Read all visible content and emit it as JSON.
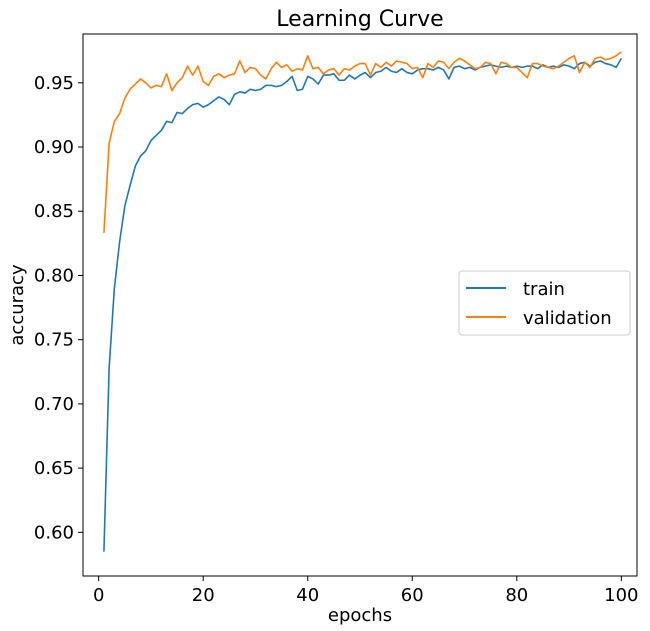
{
  "chart_data": {
    "type": "line",
    "title": "Learning Curve",
    "xlabel": "epochs",
    "ylabel": "accuracy",
    "xlim": [
      -3,
      103
    ],
    "ylim": [
      0.566,
      0.988
    ],
    "xticks": [
      0,
      20,
      40,
      60,
      80,
      100
    ],
    "xtick_labels": [
      "0",
      "20",
      "40",
      "60",
      "80",
      "100"
    ],
    "yticks": [
      0.6,
      0.65,
      0.7,
      0.75,
      0.8,
      0.85,
      0.9,
      0.95
    ],
    "ytick_labels": [
      "0.60",
      "0.65",
      "0.70",
      "0.75",
      "0.80",
      "0.85",
      "0.90",
      "0.95"
    ],
    "legend_position": "center-right",
    "series": [
      {
        "name": "train",
        "color": "#1f77b4",
        "x": [
          1,
          2,
          3,
          4,
          5,
          6,
          7,
          8,
          9,
          10,
          11,
          12,
          13,
          14,
          15,
          16,
          17,
          18,
          19,
          20,
          21,
          22,
          23,
          24,
          25,
          26,
          27,
          28,
          29,
          30,
          31,
          32,
          33,
          34,
          35,
          36,
          37,
          38,
          39,
          40,
          41,
          42,
          43,
          44,
          45,
          46,
          47,
          48,
          49,
          50,
          51,
          52,
          53,
          54,
          55,
          56,
          57,
          58,
          59,
          60,
          61,
          62,
          63,
          64,
          65,
          66,
          67,
          68,
          69,
          70,
          71,
          72,
          73,
          74,
          75,
          76,
          77,
          78,
          79,
          80,
          81,
          82,
          83,
          84,
          85,
          86,
          87,
          88,
          89,
          90,
          91,
          92,
          93,
          94,
          95,
          96,
          97,
          98,
          99,
          100
        ],
        "values": [
          0.585,
          0.728,
          0.79,
          0.826,
          0.854,
          0.87,
          0.885,
          0.893,
          0.897,
          0.905,
          0.909,
          0.913,
          0.92,
          0.919,
          0.927,
          0.926,
          0.93,
          0.933,
          0.934,
          0.931,
          0.933,
          0.936,
          0.939,
          0.937,
          0.933,
          0.941,
          0.943,
          0.942,
          0.945,
          0.944,
          0.945,
          0.948,
          0.948,
          0.947,
          0.948,
          0.951,
          0.955,
          0.944,
          0.945,
          0.955,
          0.953,
          0.949,
          0.956,
          0.956,
          0.957,
          0.952,
          0.952,
          0.956,
          0.953,
          0.956,
          0.958,
          0.954,
          0.958,
          0.959,
          0.962,
          0.959,
          0.958,
          0.961,
          0.958,
          0.957,
          0.96,
          0.961,
          0.961,
          0.96,
          0.962,
          0.96,
          0.953,
          0.962,
          0.963,
          0.961,
          0.962,
          0.96,
          0.962,
          0.963,
          0.964,
          0.963,
          0.962,
          0.963,
          0.962,
          0.963,
          0.962,
          0.963,
          0.963,
          0.961,
          0.964,
          0.962,
          0.963,
          0.962,
          0.964,
          0.963,
          0.961,
          0.965,
          0.966,
          0.963,
          0.966,
          0.967,
          0.965,
          0.964,
          0.962,
          0.969
        ]
      },
      {
        "name": "validation",
        "color": "#ff7f0e",
        "x": [
          1,
          2,
          3,
          4,
          5,
          6,
          7,
          8,
          9,
          10,
          11,
          12,
          13,
          14,
          15,
          16,
          17,
          18,
          19,
          20,
          21,
          22,
          23,
          24,
          25,
          26,
          27,
          28,
          29,
          30,
          31,
          32,
          33,
          34,
          35,
          36,
          37,
          38,
          39,
          40,
          41,
          42,
          43,
          44,
          45,
          46,
          47,
          48,
          49,
          50,
          51,
          52,
          53,
          54,
          55,
          56,
          57,
          58,
          59,
          60,
          61,
          62,
          63,
          64,
          65,
          66,
          67,
          68,
          69,
          70,
          71,
          72,
          73,
          74,
          75,
          76,
          77,
          78,
          79,
          80,
          81,
          82,
          83,
          84,
          85,
          86,
          87,
          88,
          89,
          90,
          91,
          92,
          93,
          94,
          95,
          96,
          97,
          98,
          99,
          100
        ],
        "values": [
          0.833,
          0.903,
          0.92,
          0.926,
          0.938,
          0.945,
          0.949,
          0.953,
          0.95,
          0.946,
          0.948,
          0.947,
          0.957,
          0.944,
          0.95,
          0.954,
          0.963,
          0.956,
          0.963,
          0.951,
          0.948,
          0.955,
          0.957,
          0.954,
          0.956,
          0.957,
          0.967,
          0.958,
          0.962,
          0.961,
          0.956,
          0.953,
          0.961,
          0.966,
          0.962,
          0.964,
          0.959,
          0.961,
          0.96,
          0.971,
          0.961,
          0.962,
          0.957,
          0.96,
          0.961,
          0.956,
          0.961,
          0.96,
          0.963,
          0.965,
          0.965,
          0.956,
          0.965,
          0.962,
          0.966,
          0.963,
          0.967,
          0.966,
          0.965,
          0.961,
          0.962,
          0.954,
          0.965,
          0.962,
          0.967,
          0.966,
          0.961,
          0.966,
          0.969,
          0.967,
          0.964,
          0.961,
          0.962,
          0.966,
          0.965,
          0.957,
          0.966,
          0.965,
          0.962,
          0.962,
          0.958,
          0.954,
          0.965,
          0.965,
          0.963,
          0.962,
          0.961,
          0.963,
          0.966,
          0.969,
          0.971,
          0.958,
          0.966,
          0.962,
          0.969,
          0.97,
          0.968,
          0.969,
          0.971,
          0.974
        ]
      }
    ]
  }
}
